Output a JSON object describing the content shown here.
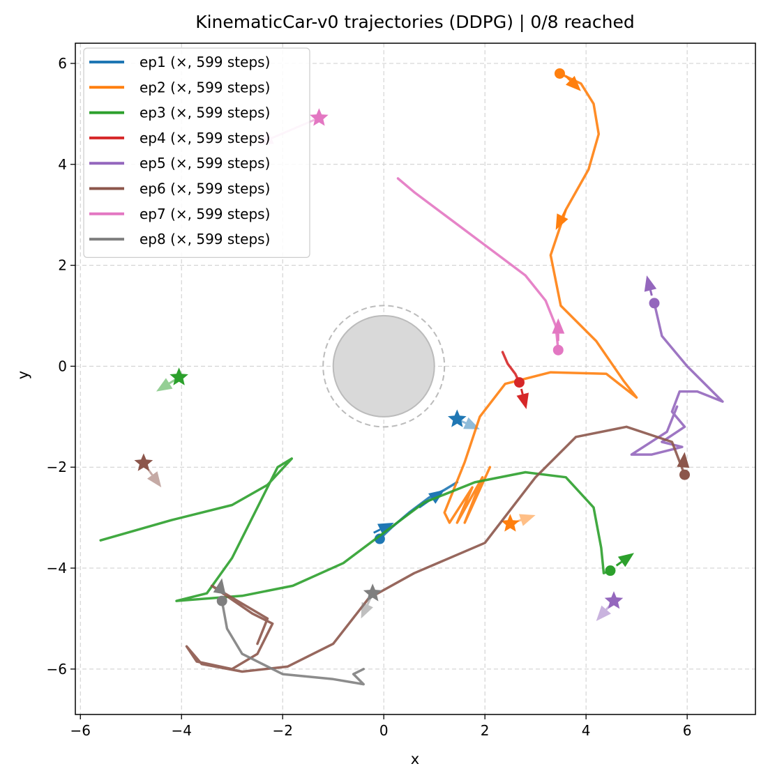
{
  "chart_data": {
    "type": "line",
    "title": "KinematicCar-v0 trajectories (DDPG) | 0/8 reached",
    "xlabel": "x",
    "ylabel": "y",
    "xlim": [
      -6.1,
      7.35
    ],
    "ylim": [
      -6.9,
      6.4
    ],
    "xticks": [
      -6,
      -4,
      -2,
      0,
      2,
      4,
      6
    ],
    "yticks": [
      -6,
      -4,
      -2,
      0,
      2,
      4,
      6
    ],
    "xtick_labels": [
      "−6",
      "−4",
      "−2",
      "0",
      "2",
      "4",
      "6"
    ],
    "ytick_labels": [
      "−6",
      "−4",
      "−2",
      "0",
      "2",
      "4",
      "6"
    ],
    "grid": true,
    "legend_position": "top-left",
    "obstacle": {
      "center": [
        0,
        0
      ],
      "radius": 1.0,
      "safety_radius": 1.2,
      "fill": "#d9d9d9",
      "edge": "#bbbbbb"
    },
    "series": [
      {
        "name": "ep1 (×, 599 steps)",
        "color": "#1f77b4",
        "start": [
          -0.08,
          -3.42
        ],
        "goal": [
          1.45,
          -1.05
        ],
        "goal_heading": [
          1.9,
          -1.25
        ],
        "points": [
          [
            -0.08,
            -3.42
          ],
          [
            0.15,
            -3.2
          ],
          [
            0.5,
            -2.9
          ],
          [
            0.9,
            -2.6
          ],
          [
            1.2,
            -2.45
          ],
          [
            1.45,
            -2.3
          ]
        ],
        "arrows": [
          [
            -0.2,
            -3.3,
            0.2,
            -3.1
          ],
          [
            0.7,
            -2.8,
            1.2,
            -2.45
          ]
        ]
      },
      {
        "name": "ep2 (×, 599 steps)",
        "color": "#ff7f0e",
        "start": [
          3.48,
          5.8
        ],
        "goal": [
          2.5,
          -3.12
        ],
        "goal_heading": [
          3.0,
          -2.95
        ],
        "points": [
          [
            3.48,
            5.8
          ],
          [
            3.9,
            5.6
          ],
          [
            4.15,
            5.2
          ],
          [
            4.25,
            4.6
          ],
          [
            4.05,
            3.9
          ],
          [
            3.6,
            3.1
          ],
          [
            3.3,
            2.2
          ],
          [
            3.5,
            1.2
          ],
          [
            4.2,
            0.5
          ],
          [
            4.75,
            -0.3
          ],
          [
            5.0,
            -0.62
          ],
          [
            4.4,
            -0.15
          ],
          [
            3.3,
            -0.12
          ],
          [
            2.4,
            -0.35
          ],
          [
            1.9,
            -1.0
          ],
          [
            1.6,
            -1.9
          ],
          [
            1.2,
            -2.9
          ],
          [
            1.3,
            -3.1
          ],
          [
            1.75,
            -2.4
          ],
          [
            1.45,
            -3.1
          ],
          [
            1.95,
            -2.2
          ],
          [
            1.6,
            -3.1
          ],
          [
            2.1,
            -2.0
          ]
        ],
        "arrows": [
          [
            3.6,
            5.75,
            3.9,
            5.45
          ],
          [
            3.6,
            3.1,
            3.4,
            2.7
          ]
        ]
      },
      {
        "name": "ep3 (×, 599 steps)",
        "color": "#2ca02c",
        "start": [
          4.48,
          -4.05
        ],
        "goal": [
          -4.05,
          -0.22
        ],
        "goal_heading": [
          -4.5,
          -0.5
        ],
        "points": [
          [
            4.48,
            -4.05
          ],
          [
            4.35,
            -4.1
          ],
          [
            4.3,
            -3.6
          ],
          [
            4.15,
            -2.8
          ],
          [
            3.6,
            -2.2
          ],
          [
            2.8,
            -2.1
          ],
          [
            1.8,
            -2.3
          ],
          [
            0.8,
            -2.7
          ],
          [
            0.0,
            -3.3
          ],
          [
            -0.8,
            -3.9
          ],
          [
            -1.8,
            -4.35
          ],
          [
            -2.8,
            -4.55
          ],
          [
            -4.1,
            -4.65
          ],
          [
            -3.5,
            -4.5
          ],
          [
            -3.0,
            -3.8
          ],
          [
            -2.5,
            -2.8
          ],
          [
            -2.1,
            -2.0
          ],
          [
            -1.82,
            -1.83
          ],
          [
            -2.3,
            -2.35
          ],
          [
            -3.0,
            -2.75
          ],
          [
            -4.2,
            -3.05
          ],
          [
            -5.6,
            -3.45
          ]
        ],
        "arrows": [
          [
            4.6,
            -3.95,
            4.95,
            -3.7
          ]
        ]
      },
      {
        "name": "ep4 (×, 599 steps)",
        "color": "#d62728",
        "start": [
          2.68,
          -0.32
        ],
        "goal": null,
        "goal_heading": null,
        "points": [
          [
            2.68,
            -0.32
          ],
          [
            2.6,
            -0.15
          ],
          [
            2.45,
            0.05
          ],
          [
            2.35,
            0.28
          ]
        ],
        "arrows": [
          [
            2.72,
            -0.45,
            2.82,
            -0.85
          ]
        ]
      },
      {
        "name": "ep5 (×, 599 steps)",
        "color": "#9467bd",
        "start": [
          5.35,
          1.25
        ],
        "goal": [
          4.55,
          -4.65
        ],
        "goal_heading": [
          4.2,
          -5.05
        ],
        "points": [
          [
            5.35,
            1.25
          ],
          [
            5.5,
            0.6
          ],
          [
            6.0,
            0.0
          ],
          [
            6.7,
            -0.7
          ],
          [
            6.2,
            -0.5
          ],
          [
            5.85,
            -0.5
          ],
          [
            5.7,
            -0.9
          ],
          [
            5.95,
            -1.2
          ],
          [
            5.5,
            -1.5
          ],
          [
            5.9,
            -1.6
          ],
          [
            5.3,
            -1.75
          ],
          [
            4.9,
            -1.75
          ],
          [
            5.6,
            -1.3
          ],
          [
            5.8,
            -0.8
          ]
        ],
        "arrows": [
          [
            5.3,
            1.4,
            5.2,
            1.8
          ]
        ]
      },
      {
        "name": "ep6 (×, 599 steps)",
        "color": "#8c564b",
        "start": [
          5.95,
          -2.15
        ],
        "goal": [
          -4.75,
          -1.92
        ],
        "goal_heading": [
          -4.4,
          -2.4
        ],
        "points": [
          [
            5.95,
            -2.15
          ],
          [
            5.7,
            -1.5
          ],
          [
            4.8,
            -1.2
          ],
          [
            3.8,
            -1.4
          ],
          [
            3.0,
            -2.2
          ],
          [
            2.0,
            -3.5
          ],
          [
            0.6,
            -4.1
          ],
          [
            -0.3,
            -4.6
          ],
          [
            -1.0,
            -5.5
          ],
          [
            -1.9,
            -5.95
          ],
          [
            -2.8,
            -6.05
          ],
          [
            -3.6,
            -5.9
          ],
          [
            -3.9,
            -5.55
          ],
          [
            -3.7,
            -5.85
          ],
          [
            -3.0,
            -6.0
          ],
          [
            -2.5,
            -5.7
          ],
          [
            -2.2,
            -5.1
          ],
          [
            -2.6,
            -4.9
          ],
          [
            -3.4,
            -4.35
          ],
          [
            -2.3,
            -5.0
          ],
          [
            -2.5,
            -5.5
          ]
        ],
        "arrows": [
          [
            5.92,
            -2.0,
            5.95,
            -1.7
          ]
        ]
      },
      {
        "name": "ep7 (×, 599 steps)",
        "color": "#e377c2",
        "start": [
          3.45,
          0.32
        ],
        "goal": [
          -1.28,
          4.92
        ],
        "goal_heading": [
          -2.5,
          4.4
        ],
        "points": [
          [
            3.45,
            0.32
          ],
          [
            3.4,
            0.8
          ],
          [
            3.2,
            1.3
          ],
          [
            2.8,
            1.8
          ],
          [
            2.0,
            2.4
          ],
          [
            1.2,
            3.0
          ],
          [
            0.6,
            3.45
          ],
          [
            0.28,
            3.72
          ]
        ],
        "arrows": [
          [
            3.45,
            0.5,
            3.45,
            0.95
          ]
        ]
      },
      {
        "name": "ep8 (×, 599 steps)",
        "color": "#7f7f7f",
        "start": [
          -3.2,
          -4.65
        ],
        "goal": [
          -0.22,
          -4.5
        ],
        "goal_heading": [
          -0.45,
          -5.0
        ],
        "points": [
          [
            -3.2,
            -4.65
          ],
          [
            -3.1,
            -5.2
          ],
          [
            -2.8,
            -5.7
          ],
          [
            -2.0,
            -6.1
          ],
          [
            -1.0,
            -6.2
          ],
          [
            -0.4,
            -6.3
          ],
          [
            -0.6,
            -6.1
          ],
          [
            -0.4,
            -6.0
          ]
        ],
        "arrows": [
          [
            -3.25,
            -4.5,
            -3.2,
            -4.2
          ]
        ]
      }
    ]
  }
}
